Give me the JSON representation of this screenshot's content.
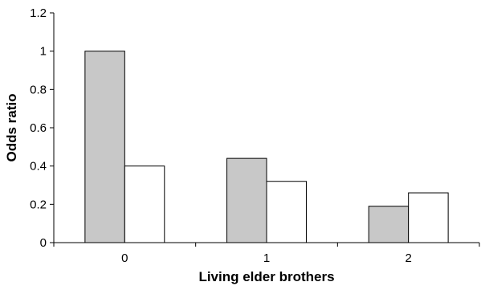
{
  "chart_data": {
    "type": "bar",
    "title": "",
    "xlabel": "Living elder brothers",
    "ylabel": "Odds ratio",
    "categories": [
      "0",
      "1",
      "2"
    ],
    "ylim": [
      0,
      1.2
    ],
    "yticks": [
      0,
      0.2,
      0.4,
      0.6,
      0.8,
      1,
      1.2
    ],
    "ytick_labels": [
      "0",
      "0.2",
      "0.4",
      "0.6",
      "0.8",
      "1",
      "1.2"
    ],
    "series": [
      {
        "values": [
          1.0,
          0.44,
          0.19
        ],
        "color": "#c8c8c8"
      },
      {
        "values": [
          0.4,
          0.32,
          0.26
        ],
        "color": "#ffffff"
      }
    ],
    "grid": false,
    "legend": "none"
  }
}
